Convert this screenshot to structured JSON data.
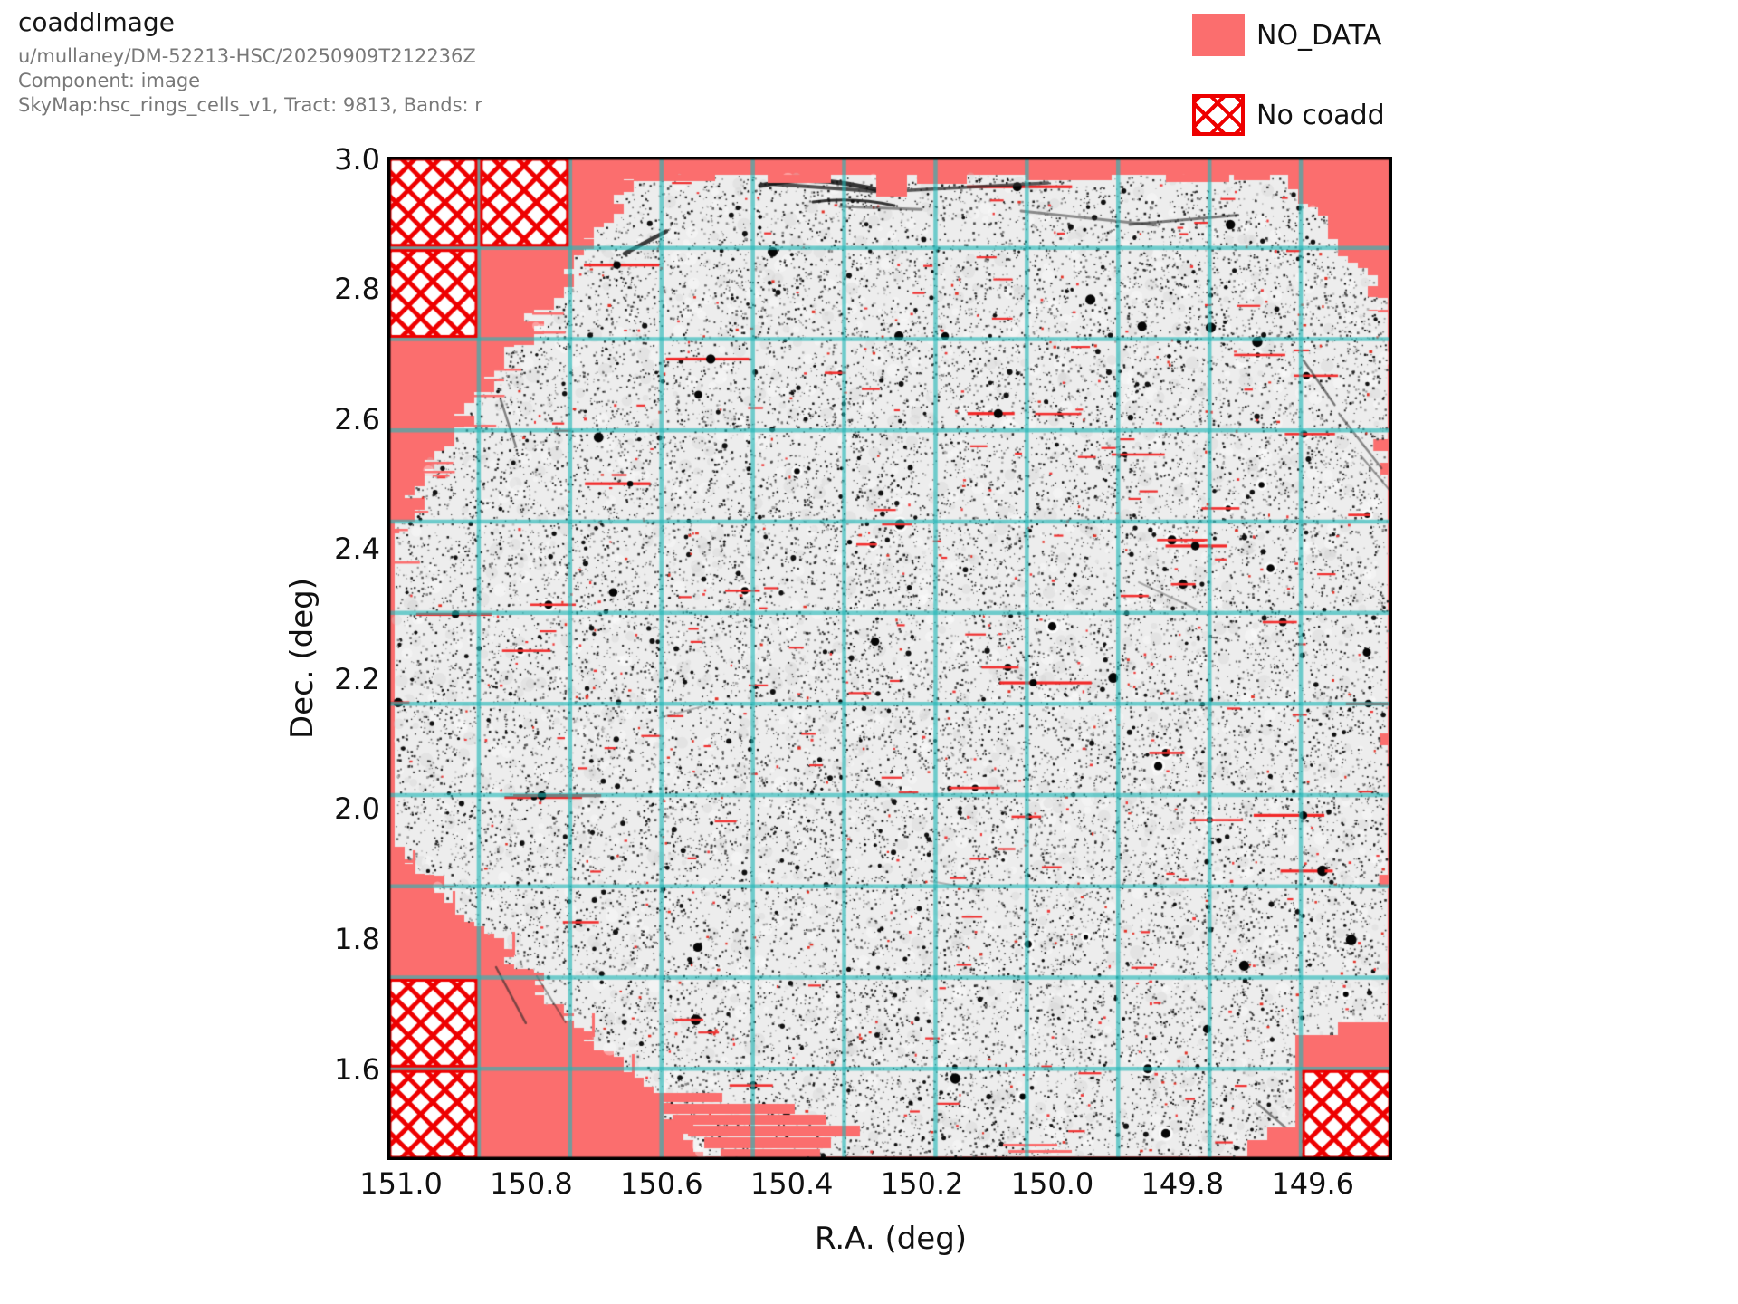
{
  "header": {
    "title": "coaddImage",
    "collection": "u/mullaney/DM-52213-HSC/20250909T212236Z",
    "component": "Component: image",
    "skymap": "SkyMap:hsc_rings_cells_v1, Tract: 9813, Bands: r"
  },
  "legend": {
    "no_data": {
      "label": "NO_DATA",
      "swatch": "solid",
      "color": "#fb6e6e"
    },
    "no_coadd": {
      "label": "No coadd",
      "swatch": "red-crosshatch",
      "color": "#ee0000"
    }
  },
  "chart_data": {
    "type": "heatmap",
    "title": "coaddImage",
    "xlabel": "R.A. (deg)",
    "ylabel": "Dec. (deg)",
    "x_axis": {
      "direction": "decreasing",
      "range": [
        151.021,
        149.478
      ],
      "ticks": [
        {
          "label": "151.0",
          "value": 151.0
        },
        {
          "label": "150.8",
          "value": 150.8
        },
        {
          "label": "150.6",
          "value": 150.6
        },
        {
          "label": "150.4",
          "value": 150.4
        },
        {
          "label": "150.2",
          "value": 150.2
        },
        {
          "label": "150.0",
          "value": 150.0
        },
        {
          "label": "149.8",
          "value": 149.8
        },
        {
          "label": "149.6",
          "value": 149.6
        }
      ]
    },
    "y_axis": {
      "range": [
        3.004,
        1.46
      ],
      "ticks": [
        {
          "label": "3.0",
          "value": 3.0
        },
        {
          "label": "2.8",
          "value": 2.8
        },
        {
          "label": "2.6",
          "value": 2.6
        },
        {
          "label": "2.4",
          "value": 2.4
        },
        {
          "label": "2.2",
          "value": 2.2
        },
        {
          "label": "2.0",
          "value": 2.0
        },
        {
          "label": "1.8",
          "value": 1.8
        },
        {
          "label": "1.6",
          "value": 1.6
        }
      ]
    },
    "grid": {
      "columns": 11,
      "rows": 11,
      "color": "rgba(32,183,183,0.62)"
    },
    "colors": {
      "no_data": "#fb6e6e",
      "image_background": "#ededed",
      "no_coadd_hatch": "#ee0000",
      "border": "#000000"
    },
    "no_coadd_patches": [
      {
        "col": 0,
        "row": 0
      },
      {
        "col": 1,
        "row": 0
      },
      {
        "col": 0,
        "row": 1
      },
      {
        "col": 0,
        "row": 9
      },
      {
        "col": 0,
        "row": 10
      },
      {
        "col": 10,
        "row": 10
      }
    ],
    "data_region": "roughly circular coadd footprint with stepped patch-boundary edges; grey speckled source field with black point sources, red masked-pixel marks and horizontal bleed trails, dark satellite trails near top and lower right; NO_DATA red fills the tract corners"
  }
}
